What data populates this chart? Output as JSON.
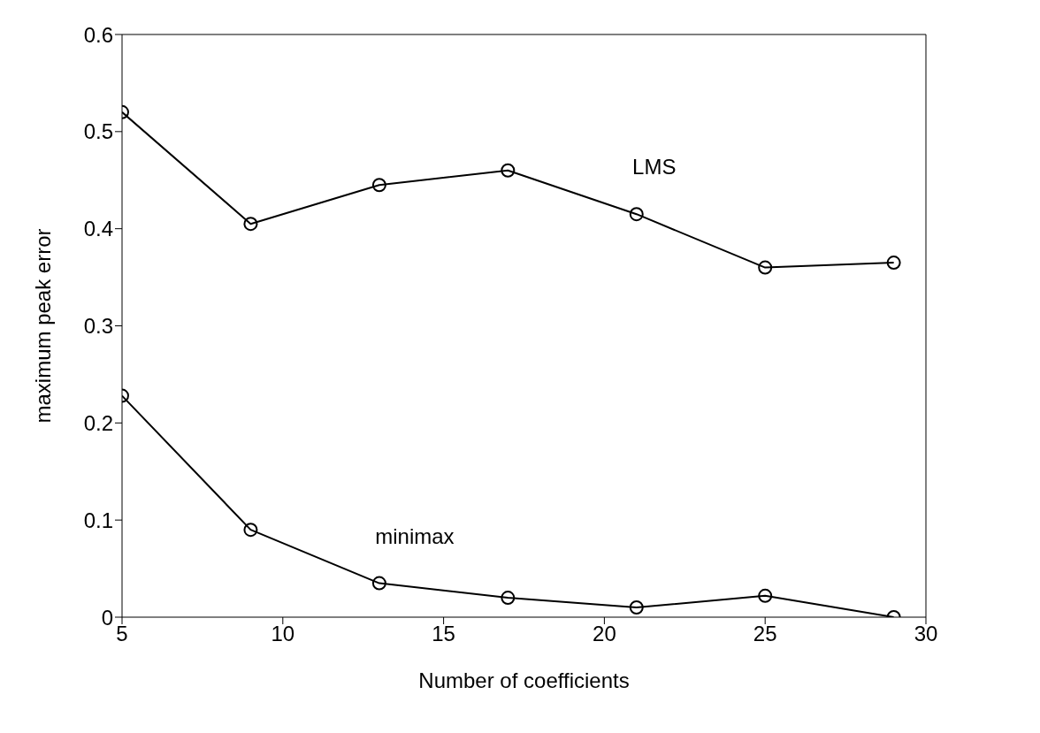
{
  "chart_data": {
    "type": "line",
    "xlabel": "Number of coefficients",
    "ylabel": "maximum peak error",
    "x": [
      5,
      9,
      13,
      17,
      21,
      25,
      29
    ],
    "series": [
      {
        "name": "LMS",
        "color": "#000000",
        "values": [
          0.52,
          0.405,
          0.445,
          0.46,
          0.415,
          0.36,
          0.365
        ]
      },
      {
        "name": "minimax",
        "color": "#000000",
        "values": [
          0.228,
          0.09,
          0.035,
          0.02,
          0.01,
          0.022,
          0.0
        ]
      }
    ],
    "xlim": [
      5,
      30
    ],
    "xticks": [
      5,
      10,
      15,
      20,
      25,
      30
    ],
    "ylim": [
      0,
      0.6
    ],
    "yticks": [
      0,
      0.1,
      0.2,
      0.3,
      0.4,
      0.5,
      0.6
    ],
    "marker": "circle",
    "line_style": "solid",
    "grid": false
  }
}
